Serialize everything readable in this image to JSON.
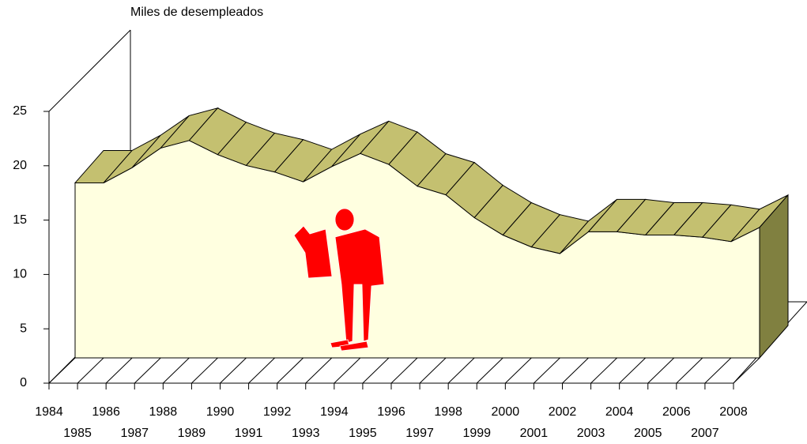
{
  "chart_data": {
    "type": "area",
    "y_label": "Miles de desempleados",
    "categories": [
      "1984",
      "1985",
      "1986",
      "1987",
      "1988",
      "1989",
      "1990",
      "1991",
      "1992",
      "1993",
      "1994",
      "1995",
      "1996",
      "1997",
      "1998",
      "1999",
      "2000",
      "2001",
      "2002",
      "2003",
      "2004",
      "2005",
      "2006",
      "2007",
      "2008"
    ],
    "values": [
      16.1,
      16.1,
      17.5,
      19.3,
      20.0,
      18.7,
      17.7,
      17.1,
      16.2,
      17.6,
      18.8,
      17.8,
      15.8,
      15.0,
      12.9,
      11.3,
      10.2,
      9.6,
      11.6,
      11.6,
      11.3,
      11.3,
      11.1,
      10.7,
      12.0
    ],
    "color": "#c4c070",
    "ylim": [
      0,
      25
    ],
    "yticks": [
      0,
      5,
      10,
      15,
      20,
      25
    ]
  }
}
